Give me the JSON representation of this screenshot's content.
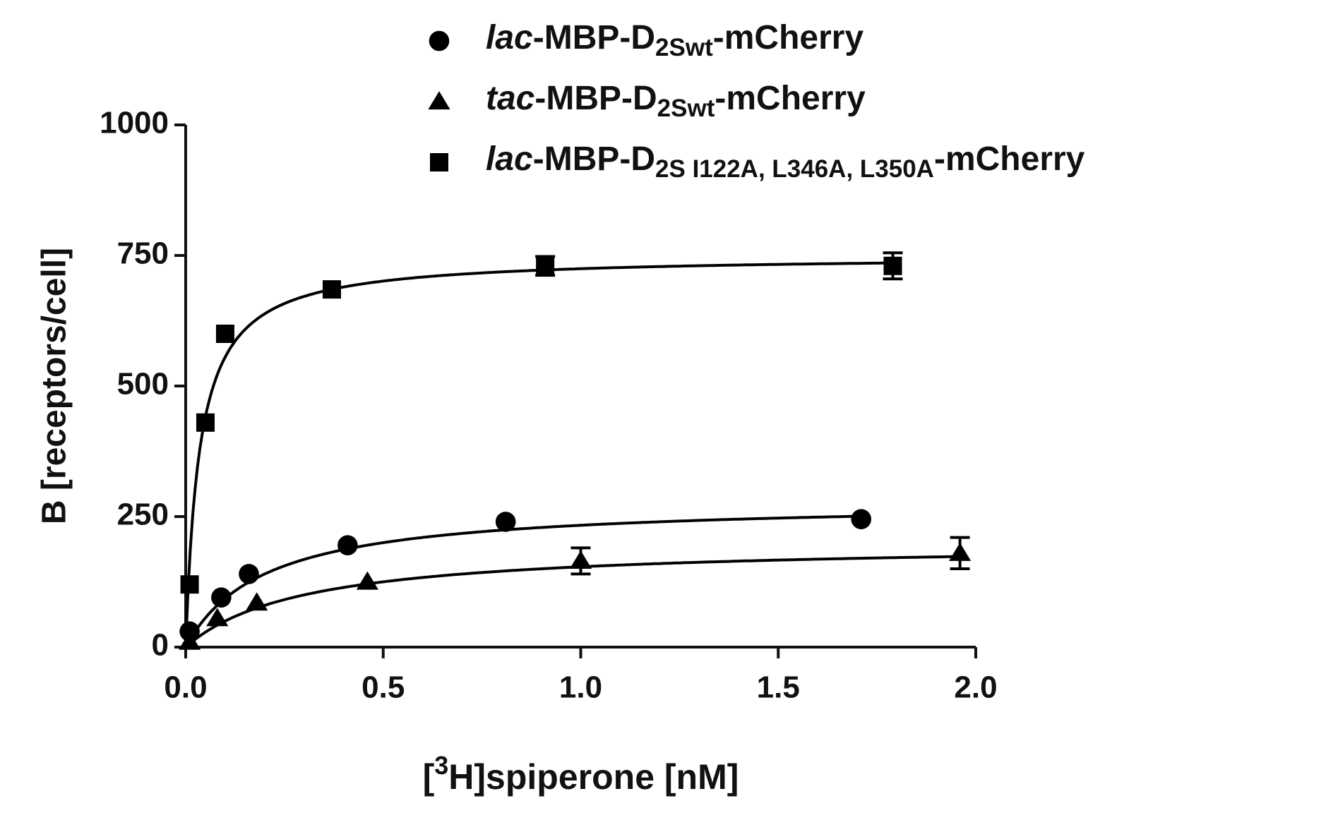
{
  "chart_data": {
    "type": "scatter",
    "xlabel": [
      {
        "text": "["
      },
      {
        "text": "3",
        "sup": true
      },
      {
        "text": "H]spiperone [nM]"
      }
    ],
    "ylabel": "B [receptors/cell]",
    "xlim": [
      0,
      2
    ],
    "ylim": [
      0,
      1000
    ],
    "xticks": [
      {
        "value": 0,
        "label": "0.0"
      },
      {
        "value": 0.5,
        "label": "0.5"
      },
      {
        "value": 1,
        "label": "1.0"
      },
      {
        "value": 1.5,
        "label": "1.5"
      },
      {
        "value": 2,
        "label": "2.0"
      }
    ],
    "yticks": [
      0,
      250,
      500,
      750,
      1000
    ],
    "grid": false,
    "legend": "top-right",
    "series": [
      {
        "name": [
          {
            "text": "lac",
            "italic": true
          },
          {
            "text": "-MBP-D"
          },
          {
            "text": "2Swt",
            "sub": true
          },
          {
            "text": "-mCherry"
          }
        ],
        "marker": "circle",
        "color": "#000000",
        "x": [
          0.01,
          0.09,
          0.16,
          0.41,
          0.81,
          1.71
        ],
        "values": [
          30,
          95,
          140,
          195,
          240,
          245
        ],
        "errors": [
          null,
          null,
          null,
          null,
          null,
          null
        ],
        "fit": {
          "bmax": 280,
          "kd": 0.2
        }
      },
      {
        "name": [
          {
            "text": "tac",
            "italic": true
          },
          {
            "text": "-MBP-D"
          },
          {
            "text": "2Swt",
            "sub": true
          },
          {
            "text": "-mCherry"
          }
        ],
        "marker": "triangle",
        "color": "#000000",
        "x": [
          0.01,
          0.08,
          0.18,
          0.46,
          1.0,
          1.96
        ],
        "values": [
          10,
          55,
          85,
          125,
          165,
          180
        ],
        "errors": [
          null,
          null,
          null,
          null,
          25,
          30
        ],
        "fit": {
          "bmax": 200,
          "kd": 0.3
        }
      },
      {
        "name": [
          {
            "text": "lac",
            "italic": true
          },
          {
            "text": "-MBP-D"
          },
          {
            "text": "2S I122A, L346A, L350A",
            "sub": true
          },
          {
            "text": "-mCherry"
          }
        ],
        "marker": "square",
        "color": "#000000",
        "x": [
          0.01,
          0.05,
          0.1,
          0.37,
          0.91,
          1.79
        ],
        "values": [
          120,
          430,
          600,
          685,
          730,
          730
        ],
        "errors": [
          null,
          null,
          null,
          null,
          18,
          25
        ],
        "fit": {
          "bmax": 750,
          "kd": 0.035
        }
      }
    ]
  }
}
